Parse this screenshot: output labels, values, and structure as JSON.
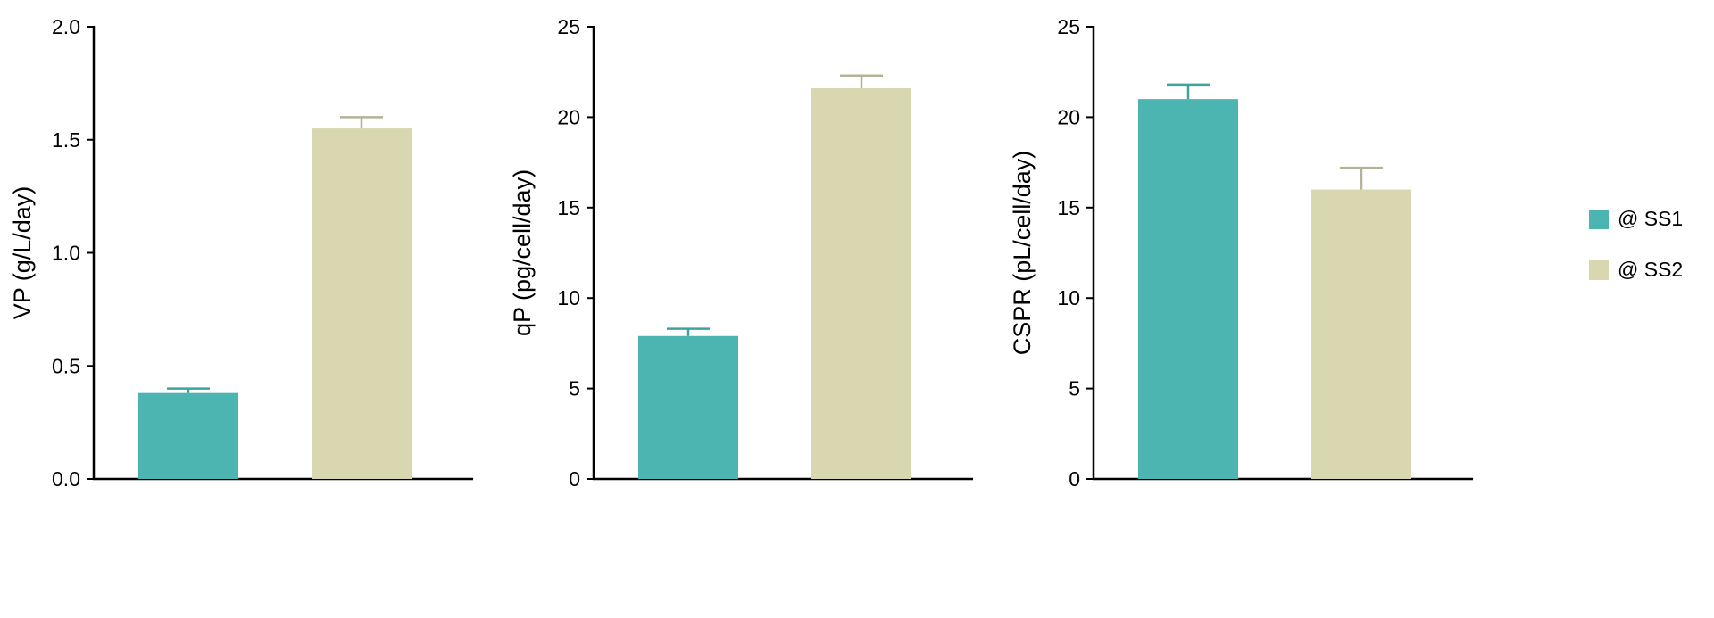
{
  "series": [
    {
      "name": "@ SS1",
      "color": "#4CB5B1",
      "error_color": "#3BA49F"
    },
    {
      "name": "@ SS2",
      "color": "#D9D7B0",
      "error_color": "#B4B294"
    }
  ],
  "axis_color": "#000000",
  "chart_data": [
    {
      "type": "bar",
      "ylabel": "VP (g/L/day)",
      "ylim": [
        0,
        2.0
      ],
      "yticks": [
        0.0,
        0.5,
        1.0,
        1.5,
        2.0
      ],
      "ytick_labels": [
        "0.0",
        "0.5",
        "1.0",
        "1.5",
        "2.0"
      ],
      "categories": [
        "@ SS1",
        "@ SS2"
      ],
      "values": [
        0.38,
        1.55
      ],
      "errors": [
        0.02,
        0.05
      ],
      "grid": false,
      "legend_position": "right-of-figure"
    },
    {
      "type": "bar",
      "ylabel": "qP (pg/cell/day)",
      "ylim": [
        0,
        25
      ],
      "yticks": [
        0,
        5,
        10,
        15,
        20,
        25
      ],
      "ytick_labels": [
        "0",
        "5",
        "10",
        "15",
        "20",
        "25"
      ],
      "categories": [
        "@ SS1",
        "@ SS2"
      ],
      "values": [
        7.9,
        21.6
      ],
      "errors": [
        0.4,
        0.7
      ],
      "grid": false,
      "legend_position": "right-of-figure"
    },
    {
      "type": "bar",
      "ylabel": "CSPR (pL/cell/day)",
      "ylim": [
        0,
        25
      ],
      "yticks": [
        0,
        5,
        10,
        15,
        20,
        25
      ],
      "ytick_labels": [
        "0",
        "5",
        "10",
        "15",
        "20",
        "25"
      ],
      "categories": [
        "@ SS1",
        "@ SS2"
      ],
      "values": [
        21.0,
        16.0
      ],
      "errors": [
        0.8,
        1.2
      ],
      "grid": false,
      "legend_position": "right-of-figure"
    }
  ]
}
